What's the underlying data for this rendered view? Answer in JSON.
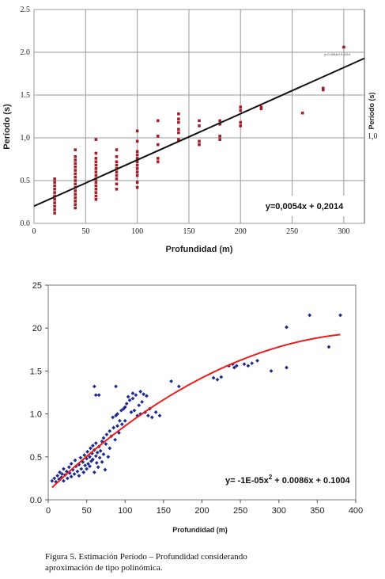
{
  "chart_data": [
    {
      "type": "scatter",
      "xlabel": "Profundidad (m)",
      "ylabel": "Período (s)",
      "ylabel_right": "Período (s)",
      "xlim": [
        0,
        320
      ],
      "ylim": [
        0,
        2.5
      ],
      "x_ticks": [
        "0",
        "50",
        "100",
        "150",
        "200",
        "250",
        "300"
      ],
      "y_ticks": [
        "0.0",
        "0.5",
        "1,0",
        "1.5",
        "2.0",
        "2.5"
      ],
      "y_ticks_right": [
        "1,0"
      ],
      "grid": true,
      "equation": "y=0,0054x + 0,2014",
      "small_equation": "y=0.0054x+0.2014",
      "trend": {
        "slope": 0.0054,
        "intercept": 0.2014,
        "x_range": [
          0,
          320
        ]
      },
      "points": [
        [
          20,
          0.12
        ],
        [
          20,
          0.16
        ],
        [
          20,
          0.2
        ],
        [
          20,
          0.24
        ],
        [
          20,
          0.28
        ],
        [
          20,
          0.32
        ],
        [
          20,
          0.36
        ],
        [
          20,
          0.4
        ],
        [
          20,
          0.44
        ],
        [
          20,
          0.48
        ],
        [
          20,
          0.52
        ],
        [
          40,
          0.18
        ],
        [
          40,
          0.22
        ],
        [
          40,
          0.26
        ],
        [
          40,
          0.3
        ],
        [
          40,
          0.34
        ],
        [
          40,
          0.38
        ],
        [
          40,
          0.42
        ],
        [
          40,
          0.46
        ],
        [
          40,
          0.5
        ],
        [
          40,
          0.54
        ],
        [
          40,
          0.58
        ],
        [
          40,
          0.62
        ],
        [
          40,
          0.66
        ],
        [
          40,
          0.7
        ],
        [
          40,
          0.74
        ],
        [
          40,
          0.78
        ],
        [
          40,
          0.86
        ],
        [
          60,
          0.28
        ],
        [
          60,
          0.32
        ],
        [
          60,
          0.36
        ],
        [
          60,
          0.4
        ],
        [
          60,
          0.44
        ],
        [
          60,
          0.48
        ],
        [
          60,
          0.52
        ],
        [
          60,
          0.56
        ],
        [
          60,
          0.6
        ],
        [
          60,
          0.64
        ],
        [
          60,
          0.68
        ],
        [
          60,
          0.72
        ],
        [
          60,
          0.76
        ],
        [
          60,
          0.82
        ],
        [
          60,
          0.98
        ],
        [
          80,
          0.4
        ],
        [
          80,
          0.46
        ],
        [
          80,
          0.52
        ],
        [
          80,
          0.56
        ],
        [
          80,
          0.6
        ],
        [
          80,
          0.64
        ],
        [
          80,
          0.68
        ],
        [
          80,
          0.72
        ],
        [
          80,
          0.78
        ],
        [
          80,
          0.86
        ],
        [
          100,
          0.42
        ],
        [
          100,
          0.48
        ],
        [
          100,
          0.56
        ],
        [
          100,
          0.6
        ],
        [
          100,
          0.64
        ],
        [
          100,
          0.68
        ],
        [
          100,
          0.72
        ],
        [
          100,
          0.76
        ],
        [
          100,
          0.8
        ],
        [
          100,
          0.84
        ],
        [
          100,
          0.96
        ],
        [
          100,
          1.08
        ],
        [
          120,
          0.72
        ],
        [
          120,
          0.76
        ],
        [
          120,
          0.92
        ],
        [
          120,
          1.02
        ],
        [
          120,
          1.2
        ],
        [
          140,
          0.98
        ],
        [
          140,
          1.06
        ],
        [
          140,
          1.1
        ],
        [
          140,
          1.18
        ],
        [
          140,
          1.22
        ],
        [
          140,
          1.28
        ],
        [
          160,
          0.92
        ],
        [
          160,
          0.96
        ],
        [
          160,
          1.14
        ],
        [
          160,
          1.2
        ],
        [
          180,
          0.98
        ],
        [
          180,
          1.02
        ],
        [
          180,
          1.16
        ],
        [
          180,
          1.2
        ],
        [
          200,
          1.14
        ],
        [
          200,
          1.18
        ],
        [
          200,
          1.32
        ],
        [
          200,
          1.36
        ],
        [
          220,
          1.34
        ],
        [
          220,
          1.36
        ],
        [
          260,
          1.29
        ],
        [
          280,
          1.56
        ],
        [
          280,
          1.58
        ],
        [
          300,
          2.06
        ]
      ]
    },
    {
      "type": "scatter",
      "xlabel": "Profundidad (m)",
      "xlim": [
        0,
        400
      ],
      "ylim": [
        0,
        25
      ],
      "x_ticks": [
        "0",
        "50",
        "100",
        "150",
        "200",
        "250",
        "300",
        "350",
        "400"
      ],
      "y_ticks": [
        "0.0",
        "0.5",
        "1.0",
        "1.5",
        "20",
        "25"
      ],
      "grid": false,
      "equation_main": "y= -1E-05x",
      "equation_sup": "2",
      "equation_rest": " + 0.0086x + 0.1004",
      "trend": {
        "a": -1e-05,
        "b": 0.0086,
        "c": 0.1004,
        "x_range": [
          5,
          380
        ]
      },
      "points": [
        [
          5,
          2.2
        ],
        [
          8,
          2.5
        ],
        [
          10,
          2.1
        ],
        [
          12,
          2.8
        ],
        [
          14,
          2.4
        ],
        [
          15,
          3.2
        ],
        [
          17,
          2.6
        ],
        [
          18,
          3.0
        ],
        [
          20,
          2.2
        ],
        [
          20,
          3.6
        ],
        [
          22,
          2.9
        ],
        [
          24,
          3.3
        ],
        [
          25,
          2.5
        ],
        [
          27,
          3.8
        ],
        [
          28,
          3.1
        ],
        [
          30,
          2.7
        ],
        [
          30,
          4.2
        ],
        [
          32,
          3.5
        ],
        [
          34,
          3.0
        ],
        [
          35,
          4.6
        ],
        [
          36,
          3.9
        ],
        [
          38,
          3.3
        ],
        [
          40,
          4.1
        ],
        [
          40,
          2.8
        ],
        [
          42,
          4.9
        ],
        [
          43,
          3.6
        ],
        [
          45,
          4.4
        ],
        [
          46,
          3.2
        ],
        [
          47,
          5.2
        ],
        [
          48,
          4.0
        ],
        [
          50,
          3.6
        ],
        [
          50,
          4.8
        ],
        [
          51,
          5.6
        ],
        [
          52,
          4.2
        ],
        [
          54,
          3.9
        ],
        [
          54,
          5.0
        ],
        [
          55,
          6.0
        ],
        [
          56,
          4.5
        ],
        [
          57,
          5.4
        ],
        [
          58,
          6.3
        ],
        [
          58,
          4.7
        ],
        [
          60,
          5.8
        ],
        [
          60,
          3.2
        ],
        [
          62,
          5.1
        ],
        [
          62,
          6.6
        ],
        [
          63,
          4.3
        ],
        [
          64,
          5.5
        ],
        [
          65,
          3.8
        ],
        [
          66,
          6.2
        ],
        [
          67,
          4.9
        ],
        [
          68,
          5.7
        ],
        [
          70,
          4.4
        ],
        [
          70,
          6.8
        ],
        [
          72,
          7.2
        ],
        [
          72,
          5.3
        ],
        [
          74,
          3.5
        ],
        [
          75,
          6.5
        ],
        [
          76,
          7.6
        ],
        [
          78,
          5.0
        ],
        [
          80,
          8.0
        ],
        [
          80,
          6.0
        ],
        [
          82,
          7.4
        ],
        [
          84,
          9.6
        ],
        [
          85,
          8.4
        ],
        [
          87,
          7.0
        ],
        [
          88,
          9.8
        ],
        [
          90,
          8.6
        ],
        [
          90,
          10.0
        ],
        [
          92,
          7.8
        ],
        [
          93,
          9.2
        ],
        [
          95,
          10.4
        ],
        [
          96,
          8.8
        ],
        [
          98,
          10.6
        ],
        [
          100,
          9.2
        ],
        [
          100,
          10.8
        ],
        [
          102,
          11.2
        ],
        [
          104,
          12.0
        ],
        [
          106,
          11.6
        ],
        [
          108,
          10.2
        ],
        [
          110,
          11.8
        ],
        [
          110,
          12.4
        ],
        [
          112,
          10.4
        ],
        [
          114,
          12.2
        ],
        [
          116,
          9.8
        ],
        [
          118,
          11.0
        ],
        [
          120,
          10.0
        ],
        [
          120,
          12.6
        ],
        [
          122,
          11.4
        ],
        [
          124,
          12.3
        ],
        [
          126,
          10.2
        ],
        [
          128,
          12.1
        ],
        [
          130,
          9.8
        ],
        [
          132,
          10.6
        ],
        [
          135,
          9.6
        ],
        [
          140,
          10.2
        ],
        [
          145,
          9.8
        ],
        [
          60,
          13.2
        ],
        [
          62,
          12.2
        ],
        [
          66,
          12.2
        ],
        [
          88,
          13.2
        ],
        [
          160,
          13.8
        ],
        [
          170,
          13.2
        ],
        [
          215,
          14.2
        ],
        [
          220,
          14.0
        ],
        [
          225,
          14.3
        ],
        [
          235,
          15.6
        ],
        [
          240,
          15.8
        ],
        [
          242,
          15.4
        ],
        [
          245,
          15.6
        ],
        [
          255,
          15.8
        ],
        [
          260,
          15.6
        ],
        [
          265,
          15.9
        ],
        [
          272,
          16.2
        ],
        [
          290,
          15.0
        ],
        [
          310,
          20.1
        ],
        [
          310,
          15.4
        ],
        [
          340,
          21.5
        ],
        [
          365,
          17.8
        ],
        [
          380,
          21.5
        ]
      ]
    }
  ],
  "caption": {
    "line1": "Figura 5. Estimación Período – Profundidad considerando",
    "line2": "aproximación de tipo polinómica."
  }
}
